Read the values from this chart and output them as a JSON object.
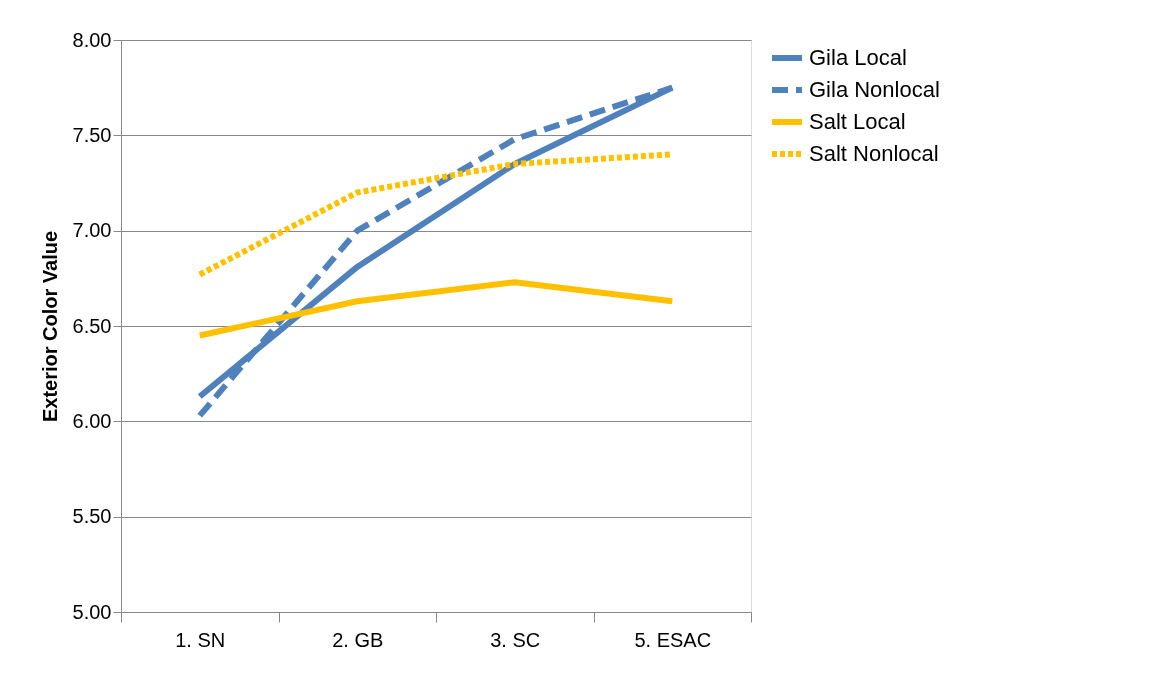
{
  "chart_data": {
    "type": "line",
    "ylabel": "Exterior Color Value",
    "categories": [
      "1. SN",
      "2. GB",
      "3. SC",
      "5. ESAC"
    ],
    "series": [
      {
        "name": "Gila Local",
        "color": "#4f81bd",
        "line_style": "solid",
        "values": [
          6.13,
          6.81,
          7.35,
          7.75
        ]
      },
      {
        "name": "Gila Nonlocal",
        "color": "#4f81bd",
        "line_style": "dashed",
        "values": [
          6.03,
          7.0,
          7.48,
          7.75
        ]
      },
      {
        "name": "Salt Local",
        "color": "#ffc000",
        "line_style": "solid",
        "values": [
          6.45,
          6.63,
          6.73,
          6.63
        ]
      },
      {
        "name": "Salt Nonlocal",
        "color": "#ffc000",
        "line_style": "dotted",
        "values": [
          6.77,
          7.2,
          7.35,
          7.4
        ]
      }
    ],
    "ylim": [
      5,
      8
    ],
    "yticks": [
      {
        "value": 5,
        "label": "5.00"
      },
      {
        "value": 5.5,
        "label": "5.50"
      },
      {
        "value": 6,
        "label": "6.00"
      },
      {
        "value": 6.5,
        "label": "6.50"
      },
      {
        "value": 7,
        "label": "7.00"
      },
      {
        "value": 7.5,
        "label": "7.50"
      },
      {
        "value": 8,
        "label": "8.00"
      }
    ],
    "grid": "y",
    "legend": "right",
    "marker": "none"
  }
}
